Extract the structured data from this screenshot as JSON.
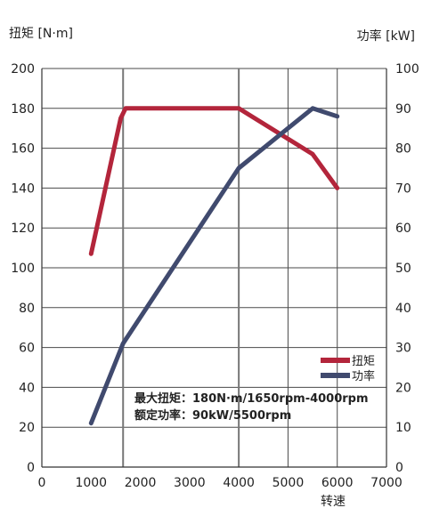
{
  "chart_data": {
    "type": "line",
    "y_left_label": "扭矩 [N·m]",
    "y_right_label": "功率 [kW]",
    "xlabel": "转速",
    "xlim": [
      0,
      7000
    ],
    "ylim_left": [
      0,
      200
    ],
    "ylim_right": [
      0,
      100
    ],
    "x_ticks": [
      "0",
      "1000",
      "2000",
      "3000",
      "4000",
      "5000",
      "6000",
      "7000"
    ],
    "y_left_ticks": [
      "0",
      "20",
      "40",
      "60",
      "80",
      "100",
      "120",
      "140",
      "160",
      "180",
      "200"
    ],
    "y_right_ticks": [
      "0",
      "10",
      "20",
      "30",
      "40",
      "50",
      "60",
      "70",
      "80",
      "90",
      "100"
    ],
    "grid": true,
    "highlight_x": [
      1650,
      4000
    ],
    "legend_position": "lower-right",
    "series": [
      {
        "name": "扭矩",
        "axis": "left",
        "color": "#b3253b",
        "points": [
          [
            1000,
            107
          ],
          [
            1600,
            175
          ],
          [
            1700,
            180
          ],
          [
            4000,
            180
          ],
          [
            5500,
            157
          ],
          [
            6000,
            140
          ]
        ]
      },
      {
        "name": "功率",
        "axis": "right",
        "color": "#404a6e",
        "points": [
          [
            1000,
            11
          ],
          [
            1650,
            31
          ],
          [
            4000,
            75
          ],
          [
            5000,
            85
          ],
          [
            5500,
            90
          ],
          [
            6000,
            88
          ]
        ]
      }
    ],
    "annotations": [
      "最大扭矩：180N·m/1650rpm-4000rpm",
      "额定功率：90kW/5500rpm"
    ]
  }
}
